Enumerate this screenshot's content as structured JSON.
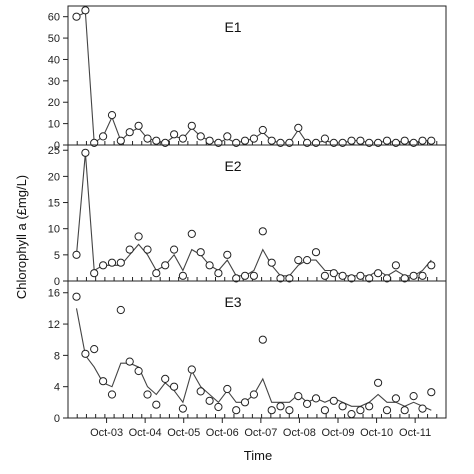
{
  "chart_data": {
    "type": "scatter",
    "xlabel": "Time",
    "ylabel": "Chlorophyll a (£mg/L)",
    "x_tick_labels": [
      "Oct-03",
      "Oct-04",
      "Oct-05",
      "Oct-06",
      "Oct-07",
      "Oct-08",
      "Oct-09",
      "Oct-10",
      "Oct-11"
    ],
    "xlim": [
      0,
      9.8
    ],
    "grid": false,
    "panels": [
      {
        "label": "E1",
        "ylim": [
          0,
          65
        ],
        "yticks": [
          0,
          10,
          20,
          30,
          40,
          50,
          60
        ],
        "x": [
          0.22,
          0.45,
          0.68,
          0.91,
          1.14,
          1.37,
          1.6,
          1.83,
          2.06,
          2.29,
          2.52,
          2.75,
          2.98,
          3.21,
          3.44,
          3.67,
          3.9,
          4.13,
          4.36,
          4.59,
          4.82,
          5.05,
          5.28,
          5.51,
          5.74,
          5.97,
          6.2,
          6.43,
          6.66,
          6.89,
          7.12,
          7.35,
          7.58,
          7.81,
          8.04,
          8.27,
          8.5,
          8.73,
          8.96,
          9.19,
          9.42
        ],
        "points": [
          60,
          63,
          1,
          4,
          14,
          2,
          6,
          9,
          3,
          2,
          1,
          5,
          3,
          9,
          4,
          2,
          1,
          4,
          1,
          2,
          3,
          7,
          2,
          1,
          1,
          8,
          1,
          1,
          3,
          1,
          1,
          2,
          2,
          1,
          1,
          2,
          1,
          2,
          1,
          2,
          2
        ],
        "line": [
          60,
          62,
          1,
          4,
          13,
          2,
          6,
          8,
          3,
          2,
          1,
          4,
          3,
          8,
          4,
          2,
          1,
          3,
          1,
          2,
          3,
          6,
          2,
          1,
          1,
          7,
          1,
          1,
          2,
          1,
          1,
          2,
          2,
          1,
          1,
          2,
          1,
          2,
          1,
          2,
          2
        ]
      },
      {
        "label": "E2",
        "ylim": [
          0,
          26
        ],
        "yticks": [
          0,
          5,
          10,
          15,
          20,
          25
        ],
        "x": [
          0.22,
          0.45,
          0.68,
          0.91,
          1.14,
          1.37,
          1.6,
          1.83,
          2.06,
          2.29,
          2.52,
          2.75,
          2.98,
          3.21,
          3.44,
          3.67,
          3.9,
          4.13,
          4.36,
          4.59,
          4.82,
          5.05,
          5.28,
          5.51,
          5.74,
          5.97,
          6.2,
          6.43,
          6.66,
          6.89,
          7.12,
          7.35,
          7.58,
          7.81,
          8.04,
          8.27,
          8.5,
          8.73,
          8.96,
          9.19,
          9.42
        ],
        "points": [
          5,
          24.5,
          1.5,
          3,
          3.5,
          3.5,
          6,
          8.5,
          6,
          1.5,
          3,
          6,
          1,
          9,
          5.5,
          3,
          1.5,
          5,
          0.5,
          1,
          1,
          9.5,
          3.5,
          0.5,
          0.5,
          4,
          4,
          5.5,
          1,
          1.5,
          1,
          0.5,
          1,
          0.5,
          1.5,
          0.5,
          3,
          0.5,
          1,
          1,
          3
        ],
        "line": [
          5,
          24.5,
          2,
          3,
          3,
          3,
          5,
          7,
          5,
          2,
          3,
          5,
          2,
          6,
          5,
          3,
          2,
          4,
          1,
          1,
          2,
          6,
          3,
          1,
          1,
          3,
          4,
          4,
          2,
          2,
          1,
          1,
          1,
          1,
          2,
          1,
          2,
          1,
          1,
          2,
          4
        ]
      },
      {
        "label": "E3",
        "ylim": [
          0,
          17.5
        ],
        "yticks": [
          0,
          4,
          8,
          12,
          16
        ],
        "x": [
          0.22,
          0.45,
          0.68,
          0.91,
          1.14,
          1.37,
          1.6,
          1.83,
          2.06,
          2.29,
          2.52,
          2.75,
          2.98,
          3.21,
          3.44,
          3.67,
          3.9,
          4.13,
          4.36,
          4.59,
          4.82,
          5.05,
          5.28,
          5.51,
          5.74,
          5.97,
          6.2,
          6.43,
          6.66,
          6.89,
          7.12,
          7.35,
          7.58,
          7.81,
          8.04,
          8.27,
          8.5,
          8.73,
          8.96,
          9.19,
          9.42
        ],
        "points": [
          15.5,
          8.2,
          8.8,
          4.7,
          3,
          13.8,
          7.2,
          6,
          3,
          1.7,
          5,
          4,
          1.2,
          6.2,
          3.4,
          2.2,
          1.4,
          3.7,
          1,
          2,
          3,
          10,
          1,
          1.5,
          1,
          2.8,
          1.8,
          2.5,
          1,
          2.2,
          1.5,
          0.5,
          1,
          1.5,
          4.5,
          1,
          2.5,
          1,
          2.8,
          1.2,
          3.3
        ],
        "line": [
          14,
          8,
          6.5,
          4.5,
          4,
          7,
          7,
          6.5,
          4,
          3,
          4.5,
          3.5,
          2,
          6,
          4,
          3,
          2,
          3.5,
          2,
          2,
          3,
          5,
          2,
          2,
          2,
          3,
          2,
          2.5,
          2,
          2.5,
          2,
          1.5,
          1.5,
          2,
          3,
          2,
          2,
          1.5,
          2,
          1.5,
          1
        ]
      }
    ]
  }
}
